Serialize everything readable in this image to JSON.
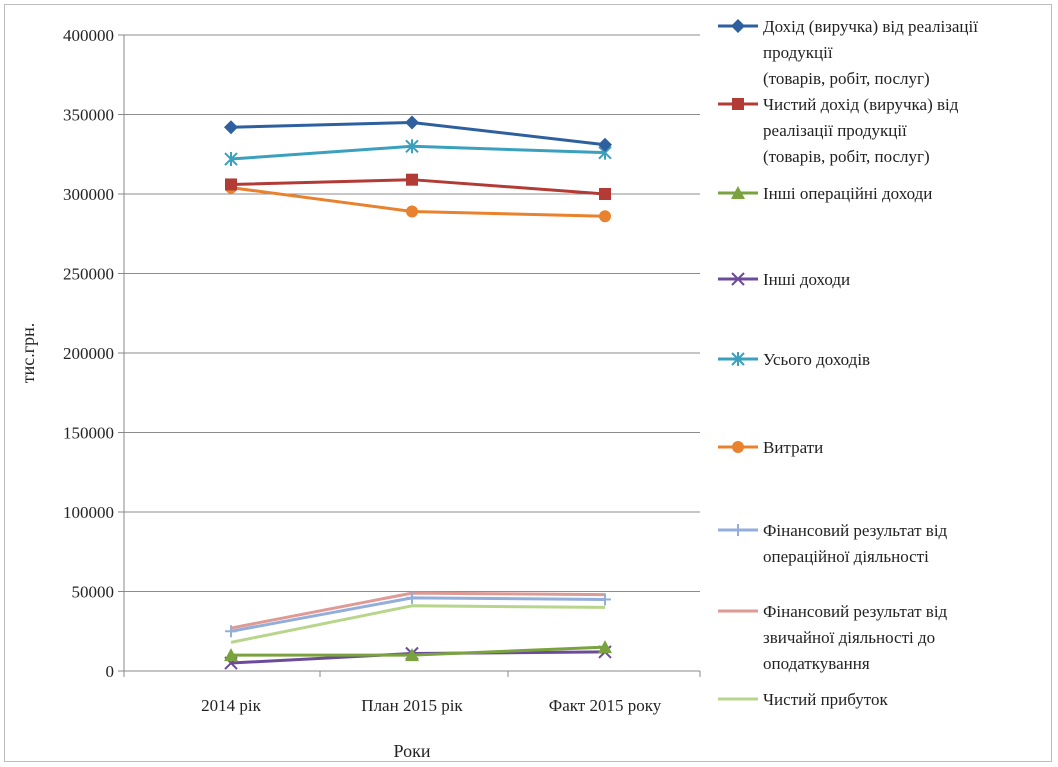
{
  "chart_data": {
    "type": "line",
    "title": "",
    "xlabel": "Роки",
    "ylabel": "тис.грн.",
    "ylim": [
      0,
      400000
    ],
    "yticks": [
      0,
      50000,
      100000,
      150000,
      200000,
      250000,
      300000,
      350000,
      400000
    ],
    "ytick_labels": [
      "0",
      "50000",
      "100000",
      "150000",
      "200000",
      "250000",
      "300000",
      "350000",
      "400000"
    ],
    "grid": "horizontal",
    "legend_position": "right",
    "categories": [
      "2014 рік",
      "План 2015 рік",
      "Факт 2015  року"
    ],
    "series": [
      {
        "name": "Дохід (виручка) від реалізації продукції (товарів, робіт, послуг)",
        "name_lines": [
          "Дохід (виручка) від реалізації",
          "продукції",
          "(товарів, робіт, послуг)"
        ],
        "color": "#2e5f9e",
        "marker": "diamond",
        "values": [
          342000,
          345000,
          331000
        ]
      },
      {
        "name": "Чистий дохід (виручка) від реалізації продукції (товарів, робіт, послуг)",
        "name_lines": [
          "Чистий дохід (виручка) від",
          "реалізації продукції",
          "(товарів, робіт, послуг)"
        ],
        "color": "#b23b36",
        "marker": "square",
        "values": [
          306000,
          309000,
          300000
        ]
      },
      {
        "name": "Інші операційні доходи",
        "name_lines": [
          "Інші операційні доходи"
        ],
        "color": "#7aa23f",
        "marker": "triangle",
        "values": [
          10000,
          10000,
          15000
        ]
      },
      {
        "name": "Інші доходи",
        "name_lines": [
          "Інші доходи"
        ],
        "color": "#6b4b9a",
        "marker": "x",
        "values": [
          5000,
          11000,
          12000
        ]
      },
      {
        "name": "Усього доходів",
        "name_lines": [
          "Усього доходів"
        ],
        "color": "#3aa0bd",
        "marker": "star",
        "values": [
          322000,
          330000,
          326000
        ]
      },
      {
        "name": "Витрати",
        "name_lines": [
          "Витрати"
        ],
        "color": "#e8822e",
        "marker": "circle",
        "values": [
          304000,
          289000,
          286000
        ]
      },
      {
        "name": "Фінансовий результат від операційної діяльності",
        "name_lines": [
          "Фінансовий результат від",
          "операційної діяльності"
        ],
        "color": "#93aedb",
        "marker": "plus",
        "values": [
          25000,
          46000,
          45000
        ]
      },
      {
        "name": "Фінансовий результат від звичайної діяльності до оподаткування",
        "name_lines": [
          "Фінансовий результат від",
          "звичайної діяльності до",
          "оподаткування"
        ],
        "color": "#df9a96",
        "marker": "none",
        "values": [
          27000,
          49000,
          48000
        ]
      },
      {
        "name": "Чистий прибуток",
        "name_lines": [
          "Чистий  прибуток"
        ],
        "color": "#b8d58c",
        "marker": "none",
        "values": [
          18000,
          41000,
          40000
        ]
      }
    ]
  }
}
